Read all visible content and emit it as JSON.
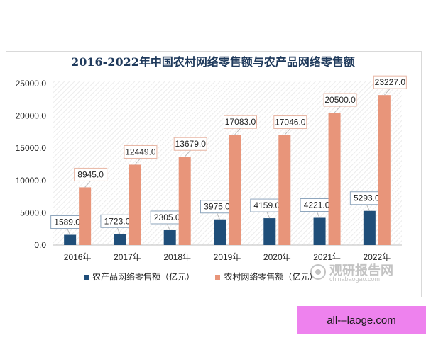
{
  "chart_data": {
    "type": "bar",
    "title": "2016-2022年中国农村网络零售额与农产品网络零售额",
    "categories": [
      "2016年",
      "2017年",
      "2018年",
      "2019年",
      "2020年",
      "2021年",
      "2022年"
    ],
    "series": [
      {
        "name": "农产品网络零售额（亿元）",
        "color": "#1f4e79",
        "values": [
          1589.0,
          1723.0,
          2305.0,
          3975.0,
          4159.0,
          4221.0,
          5293.0
        ]
      },
      {
        "name": "农村网络零售额（亿元）",
        "color": "#e8957a",
        "values": [
          8945.0,
          12449.0,
          13679.0,
          17083.0,
          17046.0,
          20500.0,
          23227.0
        ]
      }
    ],
    "yticks": [
      "0.0",
      "5000.0",
      "10000.0",
      "15000.0",
      "20000.0",
      "25000.0"
    ],
    "ylim": [
      0,
      25000
    ],
    "grid": false,
    "legend": "bottom"
  },
  "watermark": {
    "text": "观研报告网",
    "url": "chinabaogao.com"
  },
  "banner": {
    "text": "all-–laoge.com"
  }
}
